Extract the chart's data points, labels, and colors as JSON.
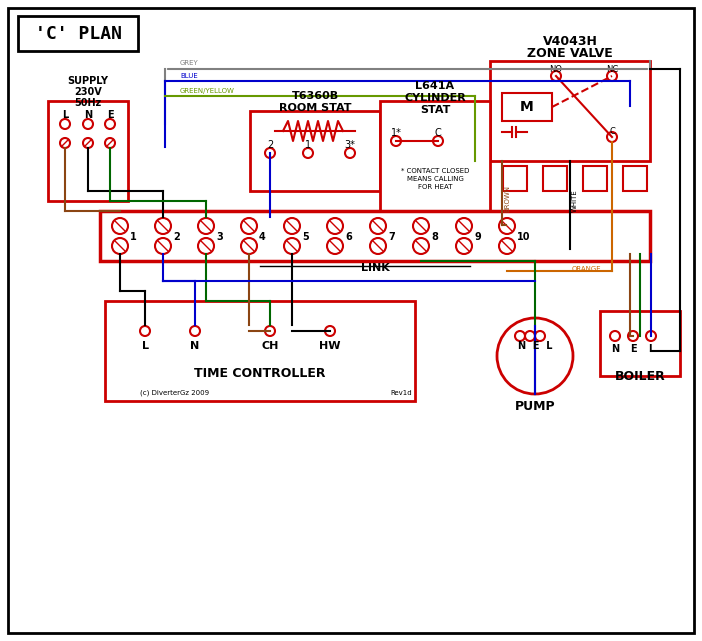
{
  "title": "'C' PLAN",
  "bg_color": "#ffffff",
  "border_color": "#000000",
  "red": "#cc0000",
  "blue": "#0000cc",
  "green": "#006600",
  "brown": "#8B4513",
  "black": "#000000",
  "grey": "#808080",
  "orange": "#cc6600",
  "green_yellow": "#669900",
  "text_color": "#000000",
  "supply_text": [
    "SUPPLY",
    "230V",
    "50Hz"
  ],
  "lne_text": "L  N  E",
  "zone_valve_text": [
    "V4043H",
    "ZONE VALVE"
  ],
  "room_stat_text": [
    "T6360B",
    "ROOM STAT"
  ],
  "cylinder_stat_text": [
    "L641A",
    "CYLINDER",
    "STAT"
  ],
  "terminal_numbers": [
    "1",
    "2",
    "3",
    "4",
    "5",
    "6",
    "7",
    "8",
    "9",
    "10"
  ],
  "time_controller_text": "TIME CONTROLLER",
  "pump_text": "PUMP",
  "boiler_text": "BOILER",
  "link_text": "LINK",
  "copyright_text": "(c) DiverterGz 2009",
  "rev_text": "Rev1d"
}
